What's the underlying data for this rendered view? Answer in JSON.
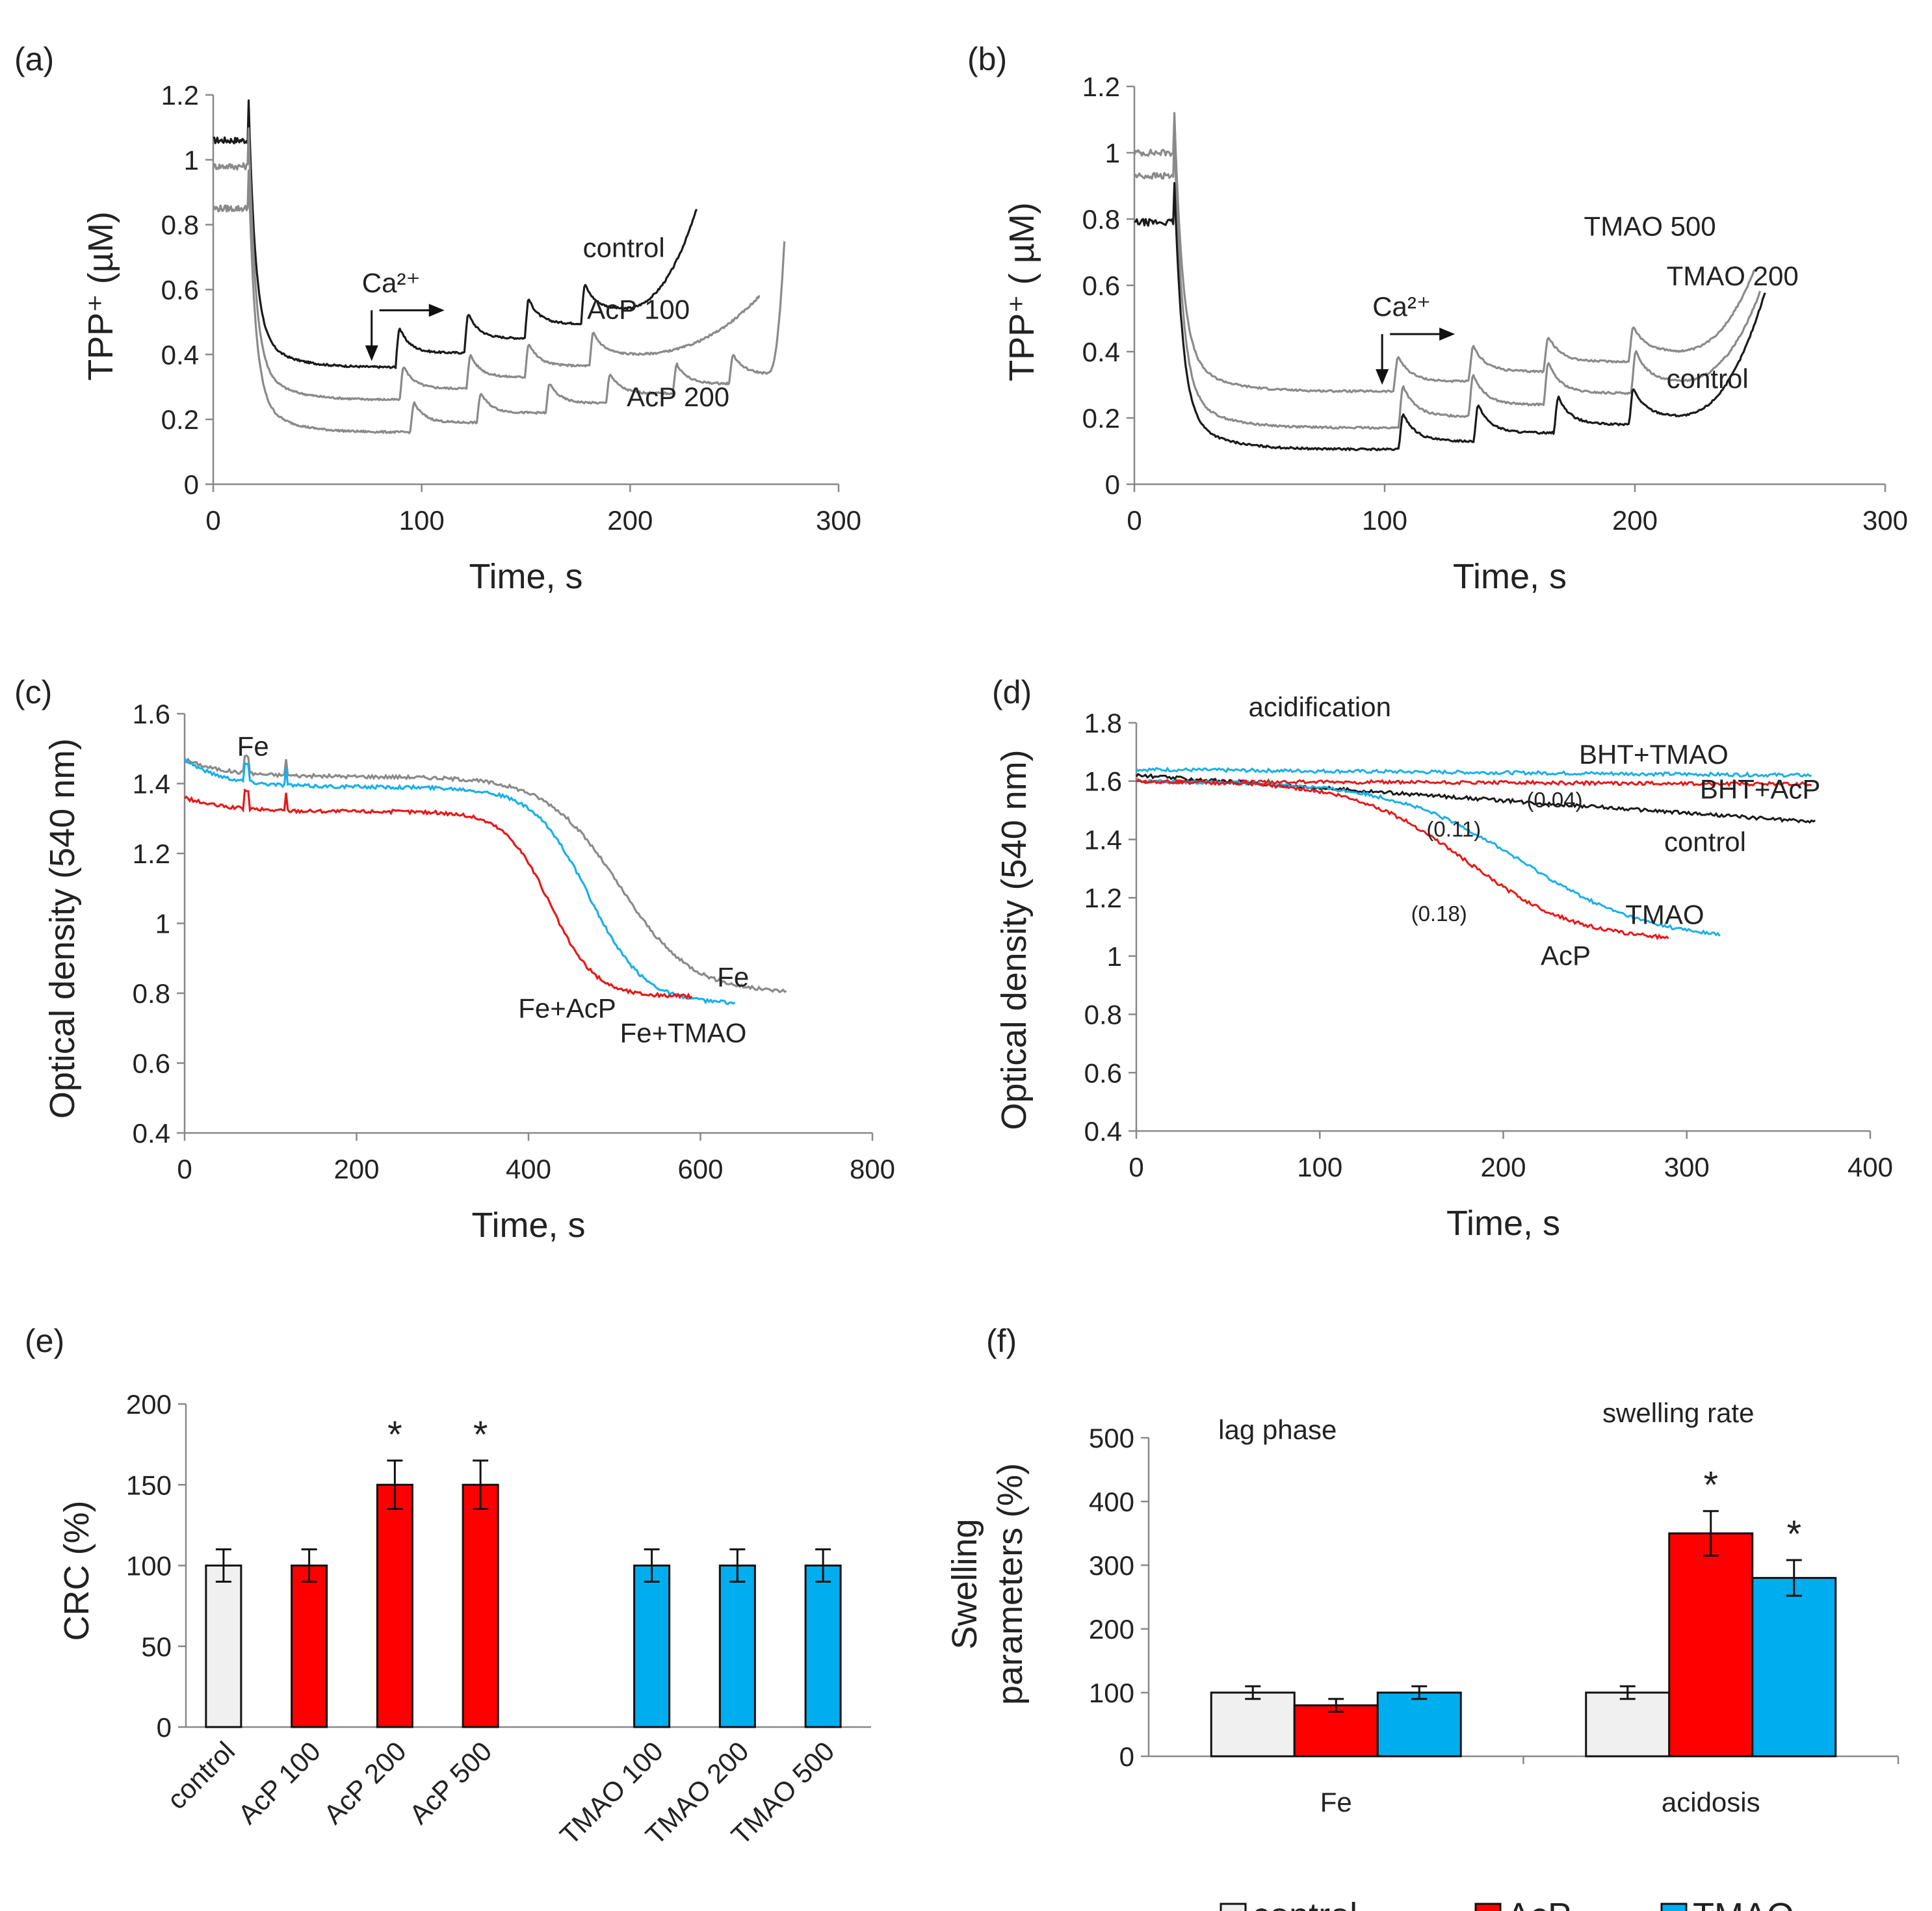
{
  "chart_data": [
    {
      "panel": "(a)",
      "type": "line",
      "xlabel": "Time, s",
      "ylabel": "TPP⁺ (µM)",
      "xlim": [
        0,
        300
      ],
      "xticks": [
        0,
        100,
        200,
        300
      ],
      "ylim": [
        0,
        1.2
      ],
      "yticks": [
        0,
        0.2,
        0.4,
        0.6,
        0.8,
        1,
        1.2
      ],
      "ytick_labels": [
        "0",
        "0.2",
        "0.4",
        "0.6",
        "0.8",
        "1",
        "1.2"
      ],
      "ca_label": "Ca²⁺",
      "ca_arrow_x": 76,
      "series": [
        {
          "name": "control",
          "color": "#1a1a1a",
          "pre": 1.06,
          "drop_x": 17,
          "base": 0.36,
          "pulses": [
            88,
            121,
            150,
            177
          ],
          "amp": 0.1,
          "step": 0.045,
          "end_x": 232,
          "end_y": 0.85
        },
        {
          "name": "AcP 100",
          "color": "#8a8a8a",
          "pre": 0.98,
          "drop_x": 17,
          "base": 0.26,
          "pulses": [
            90,
            122,
            150,
            181
          ],
          "amp": 0.09,
          "step": 0.035,
          "end_x": 262,
          "end_y": 0.58
        },
        {
          "name": "AcP 200",
          "color": "#8a8a8a",
          "pre": 0.85,
          "drop_x": 17,
          "base": 0.16,
          "pulses": [
            95,
            127,
            160,
            189,
            221,
            248
          ],
          "amp": 0.08,
          "step": 0.03,
          "end_x": 274,
          "end_y": 0.75
        }
      ],
      "labels": [
        {
          "text": "control",
          "x": 197,
          "y": 0.7
        },
        {
          "text": "AcP 100",
          "x": 204,
          "y": 0.51
        },
        {
          "text": "AcP 200",
          "x": 223,
          "y": 0.24
        }
      ]
    },
    {
      "panel": "(b)",
      "type": "line",
      "xlabel": "Time, s",
      "ylabel": "TPP⁺ ( µM)",
      "xlim": [
        0,
        300
      ],
      "xticks": [
        0,
        100,
        200,
        300
      ],
      "ylim": [
        0,
        1.2
      ],
      "yticks": [
        0,
        0.2,
        0.4,
        0.6,
        0.8,
        1,
        1.2
      ],
      "ytick_labels": [
        "0",
        "0.2",
        "0.4",
        "0.6",
        "0.8",
        "1",
        "1.2"
      ],
      "ca_label": "Ca²⁺",
      "ca_arrow_x": 99,
      "series": [
        {
          "name": "TMAO 500",
          "color": "#8a8a8a",
          "pre": 1.0,
          "drop_x": 16,
          "base": 0.28,
          "pulses": [
            104,
            134,
            164,
            198
          ],
          "amp": 0.1,
          "step": 0.03,
          "end_x": 248,
          "end_y": 0.65
        },
        {
          "name": "TMAO 200",
          "color": "#8a8a8a",
          "pre": 0.93,
          "drop_x": 16,
          "base": 0.17,
          "pulses": [
            106,
            134,
            164,
            199
          ],
          "amp": 0.12,
          "step": 0.035,
          "end_x": 250,
          "end_y": 0.58
        },
        {
          "name": "control",
          "color": "#1a1a1a",
          "pre": 0.79,
          "drop_x": 16,
          "base": 0.105,
          "pulses": [
            106,
            136,
            168,
            198
          ],
          "amp": 0.11,
          "step": 0.025,
          "end_x": 252,
          "end_y": 0.58
        }
      ],
      "labels": [
        {
          "text": "TMAO 500",
          "x": 206,
          "y": 0.75
        },
        {
          "text": "TMAO 200",
          "x": 239,
          "y": 0.6
        },
        {
          "text": "control",
          "x": 229,
          "y": 0.29
        }
      ]
    },
    {
      "panel": "(c)",
      "type": "line",
      "xlabel": "Time, s",
      "ylabel": "Optical density (540 nm)",
      "xlim": [
        0,
        800
      ],
      "xticks": [
        0,
        200,
        400,
        600,
        800
      ],
      "ylim": [
        0.4,
        1.6
      ],
      "yticks": [
        0.4,
        0.6,
        0.8,
        1,
        1.2,
        1.4,
        1.6
      ],
      "ytick_labels": [
        "0.4",
        "0.6",
        "0.8",
        "1",
        "1.2",
        "1.4",
        "1.6"
      ],
      "series": [
        {
          "name": "Fe",
          "color": "#8a8a8a",
          "start": 1.47,
          "plateau": 1.42,
          "end": 0.8,
          "mid": 505,
          "width": 42,
          "end_x": 700
        },
        {
          "name": "Fe+TMAO",
          "color": "#1ab0e8",
          "start": 1.47,
          "plateau": 1.39,
          "end": 0.77,
          "mid": 470,
          "width": 32,
          "end_x": 640
        },
        {
          "name": "Fe+AcP",
          "color": "#e41a1a",
          "start": 1.36,
          "plateau": 1.32,
          "end": 0.79,
          "mid": 425,
          "width": 26,
          "end_x": 590
        }
      ],
      "fe_marker": {
        "text": "Fe",
        "x": 72
      },
      "labels": [
        {
          "text": "Fe",
          "x": 638,
          "y": 0.82
        },
        {
          "text": "Fe+AcP",
          "x": 445,
          "y": 0.73
        },
        {
          "text": "Fe+TMAO",
          "x": 580,
          "y": 0.66
        }
      ]
    },
    {
      "panel": "(d)",
      "type": "line",
      "xlabel": "Time, s",
      "ylabel": "Optical density (540 nm)",
      "title": "acidification",
      "xlim": [
        0,
        400
      ],
      "xticks": [
        0,
        100,
        200,
        300,
        400
      ],
      "ylim": [
        0.4,
        1.8
      ],
      "yticks": [
        0.4,
        0.6,
        0.8,
        1,
        1.2,
        1.4,
        1.6,
        1.8
      ],
      "ytick_labels": [
        "0.4",
        "0.6",
        "0.8",
        "1",
        "1.2",
        "1.4",
        "1.6",
        "1.8"
      ],
      "series": [
        {
          "name": "BHT+TMAO",
          "color": "#1ab0e8",
          "kind": "flat",
          "start": 1.64,
          "end": 1.62,
          "end_x": 368
        },
        {
          "name": "BHT+AcP",
          "color": "#e41a1a",
          "kind": "flat",
          "start": 1.6,
          "end": 1.59,
          "end_x": 368
        },
        {
          "name": "control",
          "color": "#1a1a1a",
          "kind": "linear",
          "start": 1.62,
          "end": 1.46,
          "end_x": 370
        },
        {
          "name": "TMAO",
          "color": "#1ab0e8",
          "kind": "sigmoid",
          "start": 1.6,
          "end": 1.05,
          "mid": 210,
          "width": 35,
          "end_x": 318
        },
        {
          "name": "AcP",
          "color": "#e41a1a",
          "kind": "sigmoid",
          "start": 1.6,
          "end": 1.05,
          "mid": 180,
          "width": 30,
          "end_x": 290
        }
      ],
      "labels": [
        {
          "text": "BHT+TMAO",
          "x": 282,
          "y": 1.66
        },
        {
          "text": "BHT+AcP",
          "x": 340,
          "y": 1.54
        },
        {
          "text": "control",
          "x": 310,
          "y": 1.36
        },
        {
          "text": "TMAO",
          "x": 288,
          "y": 1.11
        },
        {
          "text": "AcP",
          "x": 234,
          "y": 0.97
        }
      ],
      "rates": [
        {
          "text": "(0.04)",
          "x": 228,
          "y": 1.51
        },
        {
          "text": "(0.11)",
          "x": 173,
          "y": 1.41
        },
        {
          "text": "(0.18)",
          "x": 165,
          "y": 1.12
        }
      ]
    },
    {
      "panel": "(e)",
      "type": "bar",
      "ylabel": "CRC (%)",
      "ylim": [
        0,
        200
      ],
      "yticks": [
        0,
        50,
        100,
        150,
        200
      ],
      "categories": [
        "control",
        "AcP 100",
        "AcP 200",
        "AcP 500",
        "TMAO 100",
        "TMAO 200",
        "TMAO 500"
      ],
      "values": [
        100,
        100,
        150,
        150,
        100,
        100,
        100
      ],
      "errors": [
        10,
        10,
        15,
        15,
        10,
        10,
        10
      ],
      "significant": [
        false,
        false,
        true,
        true,
        false,
        false,
        false
      ],
      "colors": [
        "#f0f0f0",
        "#ff0000",
        "#ff0000",
        "#ff0000",
        "#00aeef",
        "#00aeef",
        "#00aeef"
      ]
    },
    {
      "panel": "(f)",
      "type": "bar",
      "ylabel": "Swelling parameters (%)",
      "ylabel_lines": [
        "Swelling",
        "parameters (%)"
      ],
      "ylim": [
        0,
        500
      ],
      "yticks": [
        0,
        100,
        200,
        300,
        400,
        500
      ],
      "categories": [
        "Fe",
        "acidosis"
      ],
      "group_titles": [
        "lag phase",
        "swelling rate"
      ],
      "series": [
        {
          "name": "control",
          "color": "#f0f0f0",
          "values": [
            100,
            100
          ],
          "errors": [
            10,
            10
          ],
          "significant": [
            false,
            false
          ]
        },
        {
          "name": "AcP",
          "color": "#ff0000",
          "values": [
            80,
            350
          ],
          "errors": [
            10,
            35
          ],
          "significant": [
            false,
            true
          ]
        },
        {
          "name": "TMAO",
          "color": "#00aeef",
          "values": [
            100,
            280
          ],
          "errors": [
            10,
            28
          ],
          "significant": [
            false,
            true
          ]
        }
      ],
      "legend": [
        "control",
        "AcP",
        "TMAO"
      ]
    }
  ]
}
